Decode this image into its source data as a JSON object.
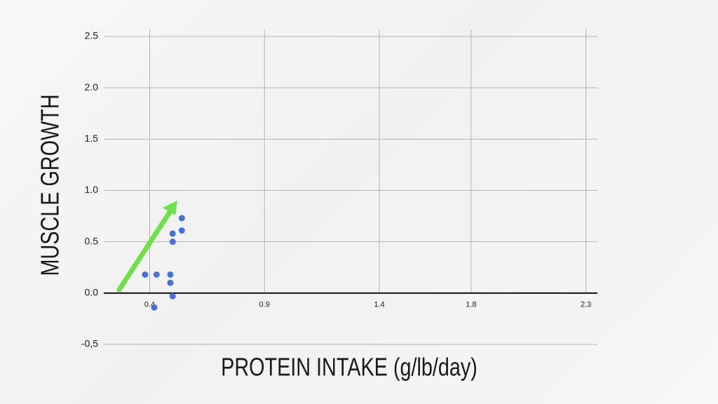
{
  "chart_data": {
    "type": "scatter",
    "x_label": "PROTEIN INTAKE (g/lb/day)",
    "y_label": "MUSCLE GROWTH",
    "x": [
      0.38,
      0.43,
      0.42,
      0.49,
      0.49,
      0.5,
      0.5,
      0.5,
      0.54,
      0.54
    ],
    "values": [
      0.18,
      0.18,
      -0.14,
      0.18,
      0.1,
      -0.03,
      0.5,
      0.58,
      0.61,
      0.73
    ],
    "color": "#4a72d4",
    "xlim": [
      0.2,
      2.35
    ],
    "ylim": [
      -0.5,
      2.5
    ],
    "xticks": [
      0.4,
      0.9,
      1.4,
      1.8,
      2.3
    ],
    "yticks": [
      {
        "value": -0.5,
        "label": "-0,5"
      },
      {
        "value": 0,
        "label": "0.0"
      },
      0.5,
      {
        "value": 1,
        "label": "1.0"
      },
      1.5,
      {
        "value": 2,
        "label": "2.0"
      },
      2.5
    ],
    "grid": true
  }
}
